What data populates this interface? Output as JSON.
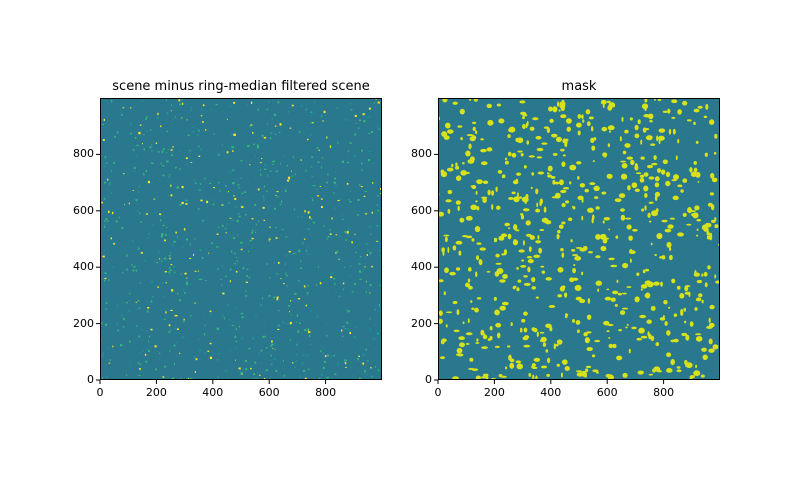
{
  "chart_data": [
    {
      "type": "heatmap",
      "title": "scene minus ring-median filtered scene",
      "xlabel": "",
      "ylabel": "",
      "xlim": [
        0,
        1000
      ],
      "ylim": [
        0,
        1000
      ],
      "xticks": [
        "0",
        "200",
        "400",
        "600",
        "800"
      ],
      "yticks": [
        "0",
        "200",
        "400",
        "600",
        "800"
      ],
      "colormap": "viridis",
      "colors": {
        "background": "#2a788e",
        "speck_green": "#35b779",
        "speck_yellow": "#fde725",
        "speck_dark": "#21918c"
      },
      "grid": false,
      "legend": "none"
    },
    {
      "type": "heatmap",
      "title": "mask",
      "xlabel": "",
      "ylabel": "",
      "xlim": [
        0,
        1000
      ],
      "ylim": [
        0,
        1000
      ],
      "xticks": [
        "0",
        "200",
        "400",
        "600",
        "800"
      ],
      "yticks": [
        "0",
        "200",
        "400",
        "600",
        "800"
      ],
      "colormap": "viridis",
      "colors": {
        "background": "#2a788e",
        "blob": "#d8e219"
      },
      "grid": false,
      "legend": "none"
    }
  ]
}
